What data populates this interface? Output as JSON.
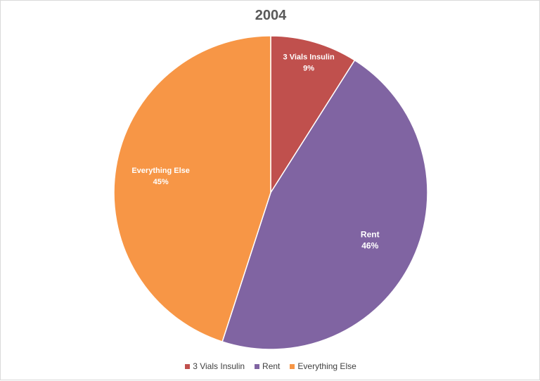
{
  "chart_data": {
    "type": "pie",
    "title": "2004",
    "slices": [
      {
        "label": "3 Vials Insulin",
        "value": 9,
        "display": "9%",
        "color": "#c0504d"
      },
      {
        "label": "Rent",
        "value": 46,
        "display": "46%",
        "color": "#8064a2"
      },
      {
        "label": "Everything Else",
        "value": 45,
        "display": "45%",
        "color": "#f79646"
      }
    ],
    "legend_position": "bottom",
    "data_labels": "category name and percentage"
  }
}
